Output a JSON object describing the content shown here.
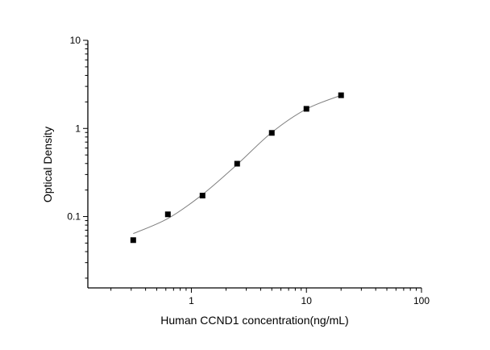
{
  "chart_data": {
    "type": "scatter",
    "title": "",
    "xlabel": "Human CCND1 concentration(ng/mL)",
    "ylabel": "Optical Density",
    "x_scale": "log",
    "y_scale": "log",
    "xlim": [
      0.126,
      100
    ],
    "ylim": [
      0.0155,
      10
    ],
    "x_tick_labels": [
      "1",
      "10",
      "100"
    ],
    "x_tick_values": [
      1,
      10,
      100
    ],
    "y_tick_labels": [
      "0.1",
      "1",
      "10"
    ],
    "y_tick_values": [
      0.1,
      1,
      10
    ],
    "grid": false,
    "series": [
      {
        "marker": "square",
        "color": "#000000",
        "x": [
          0.3125,
          0.625,
          1.25,
          2.5,
          5,
          10,
          20
        ],
        "y": [
          0.054,
          0.106,
          0.173,
          0.398,
          0.89,
          1.67,
          2.38
        ]
      }
    ],
    "fit_curve": {
      "color": "#808080",
      "x": [
        0.3125,
        0.625,
        1.25,
        2.5,
        5,
        10,
        20
      ],
      "y": [
        0.064,
        0.095,
        0.178,
        0.39,
        0.9,
        1.66,
        2.38
      ]
    }
  }
}
